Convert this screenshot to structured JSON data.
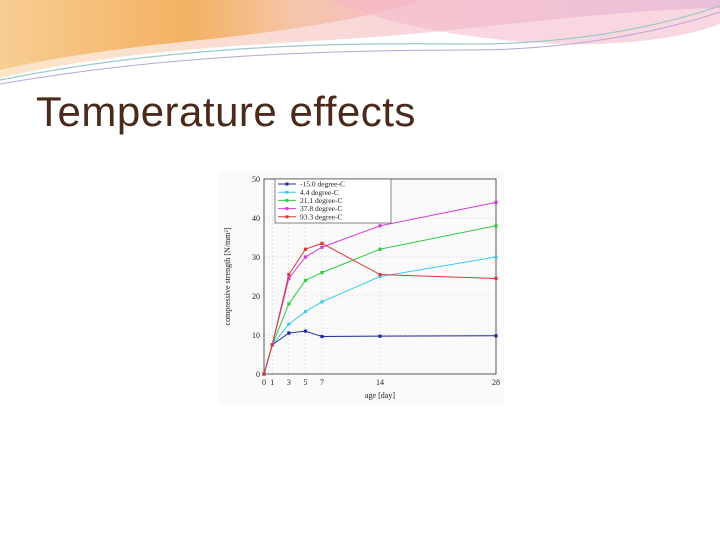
{
  "slide": {
    "title": "Temperature effects"
  },
  "colors": {
    "title": "#4a2a1a",
    "banner_orange": "#f2a94e",
    "banner_pink": "#f2b8c6",
    "banner_purple": "#c9b2e3",
    "banner_teal": "#9cc9c9"
  },
  "chart_data": {
    "type": "line",
    "xlabel": "age [day]",
    "ylabel": "compressive strength [N/mm²]",
    "xlim": [
      0,
      28
    ],
    "ylim": [
      0,
      50
    ],
    "xticks": [
      0,
      1,
      3,
      5,
      7,
      14,
      28
    ],
    "yticks": [
      0,
      10,
      20,
      30,
      40,
      50
    ],
    "grid": true,
    "legend_position": "top-left",
    "series": [
      {
        "name": "-15.0 degree-C",
        "color": "#1f2a9a",
        "x": [
          0,
          1,
          3,
          5,
          7,
          14,
          28
        ],
        "y": [
          0,
          7.5,
          10.5,
          11,
          9.6,
          9.7,
          9.8
        ]
      },
      {
        "name": "4.4 degree-C",
        "color": "#3ccce6",
        "x": [
          0,
          1,
          3,
          5,
          7,
          14,
          28
        ],
        "y": [
          0,
          7.5,
          12.8,
          16.0,
          18.5,
          25.0,
          30.0
        ]
      },
      {
        "name": "21.1 degree-C",
        "color": "#2ecc40",
        "x": [
          0,
          1,
          3,
          5,
          7,
          14,
          28
        ],
        "y": [
          0,
          7.5,
          18.0,
          24.0,
          26.0,
          32.0,
          38.0
        ]
      },
      {
        "name": "37.8 degree-C",
        "color": "#d63ad6",
        "x": [
          0,
          1,
          3,
          5,
          7,
          14,
          28
        ],
        "y": [
          0,
          7.5,
          24.5,
          30.0,
          32.5,
          38.0,
          44.0
        ]
      },
      {
        "name": "93.3 degree-C",
        "color": "#d63a3a",
        "x": [
          0,
          1,
          3,
          5,
          7,
          14,
          28
        ],
        "y": [
          0,
          7.5,
          25.5,
          32.0,
          33.5,
          25.5,
          24.5
        ]
      }
    ]
  }
}
